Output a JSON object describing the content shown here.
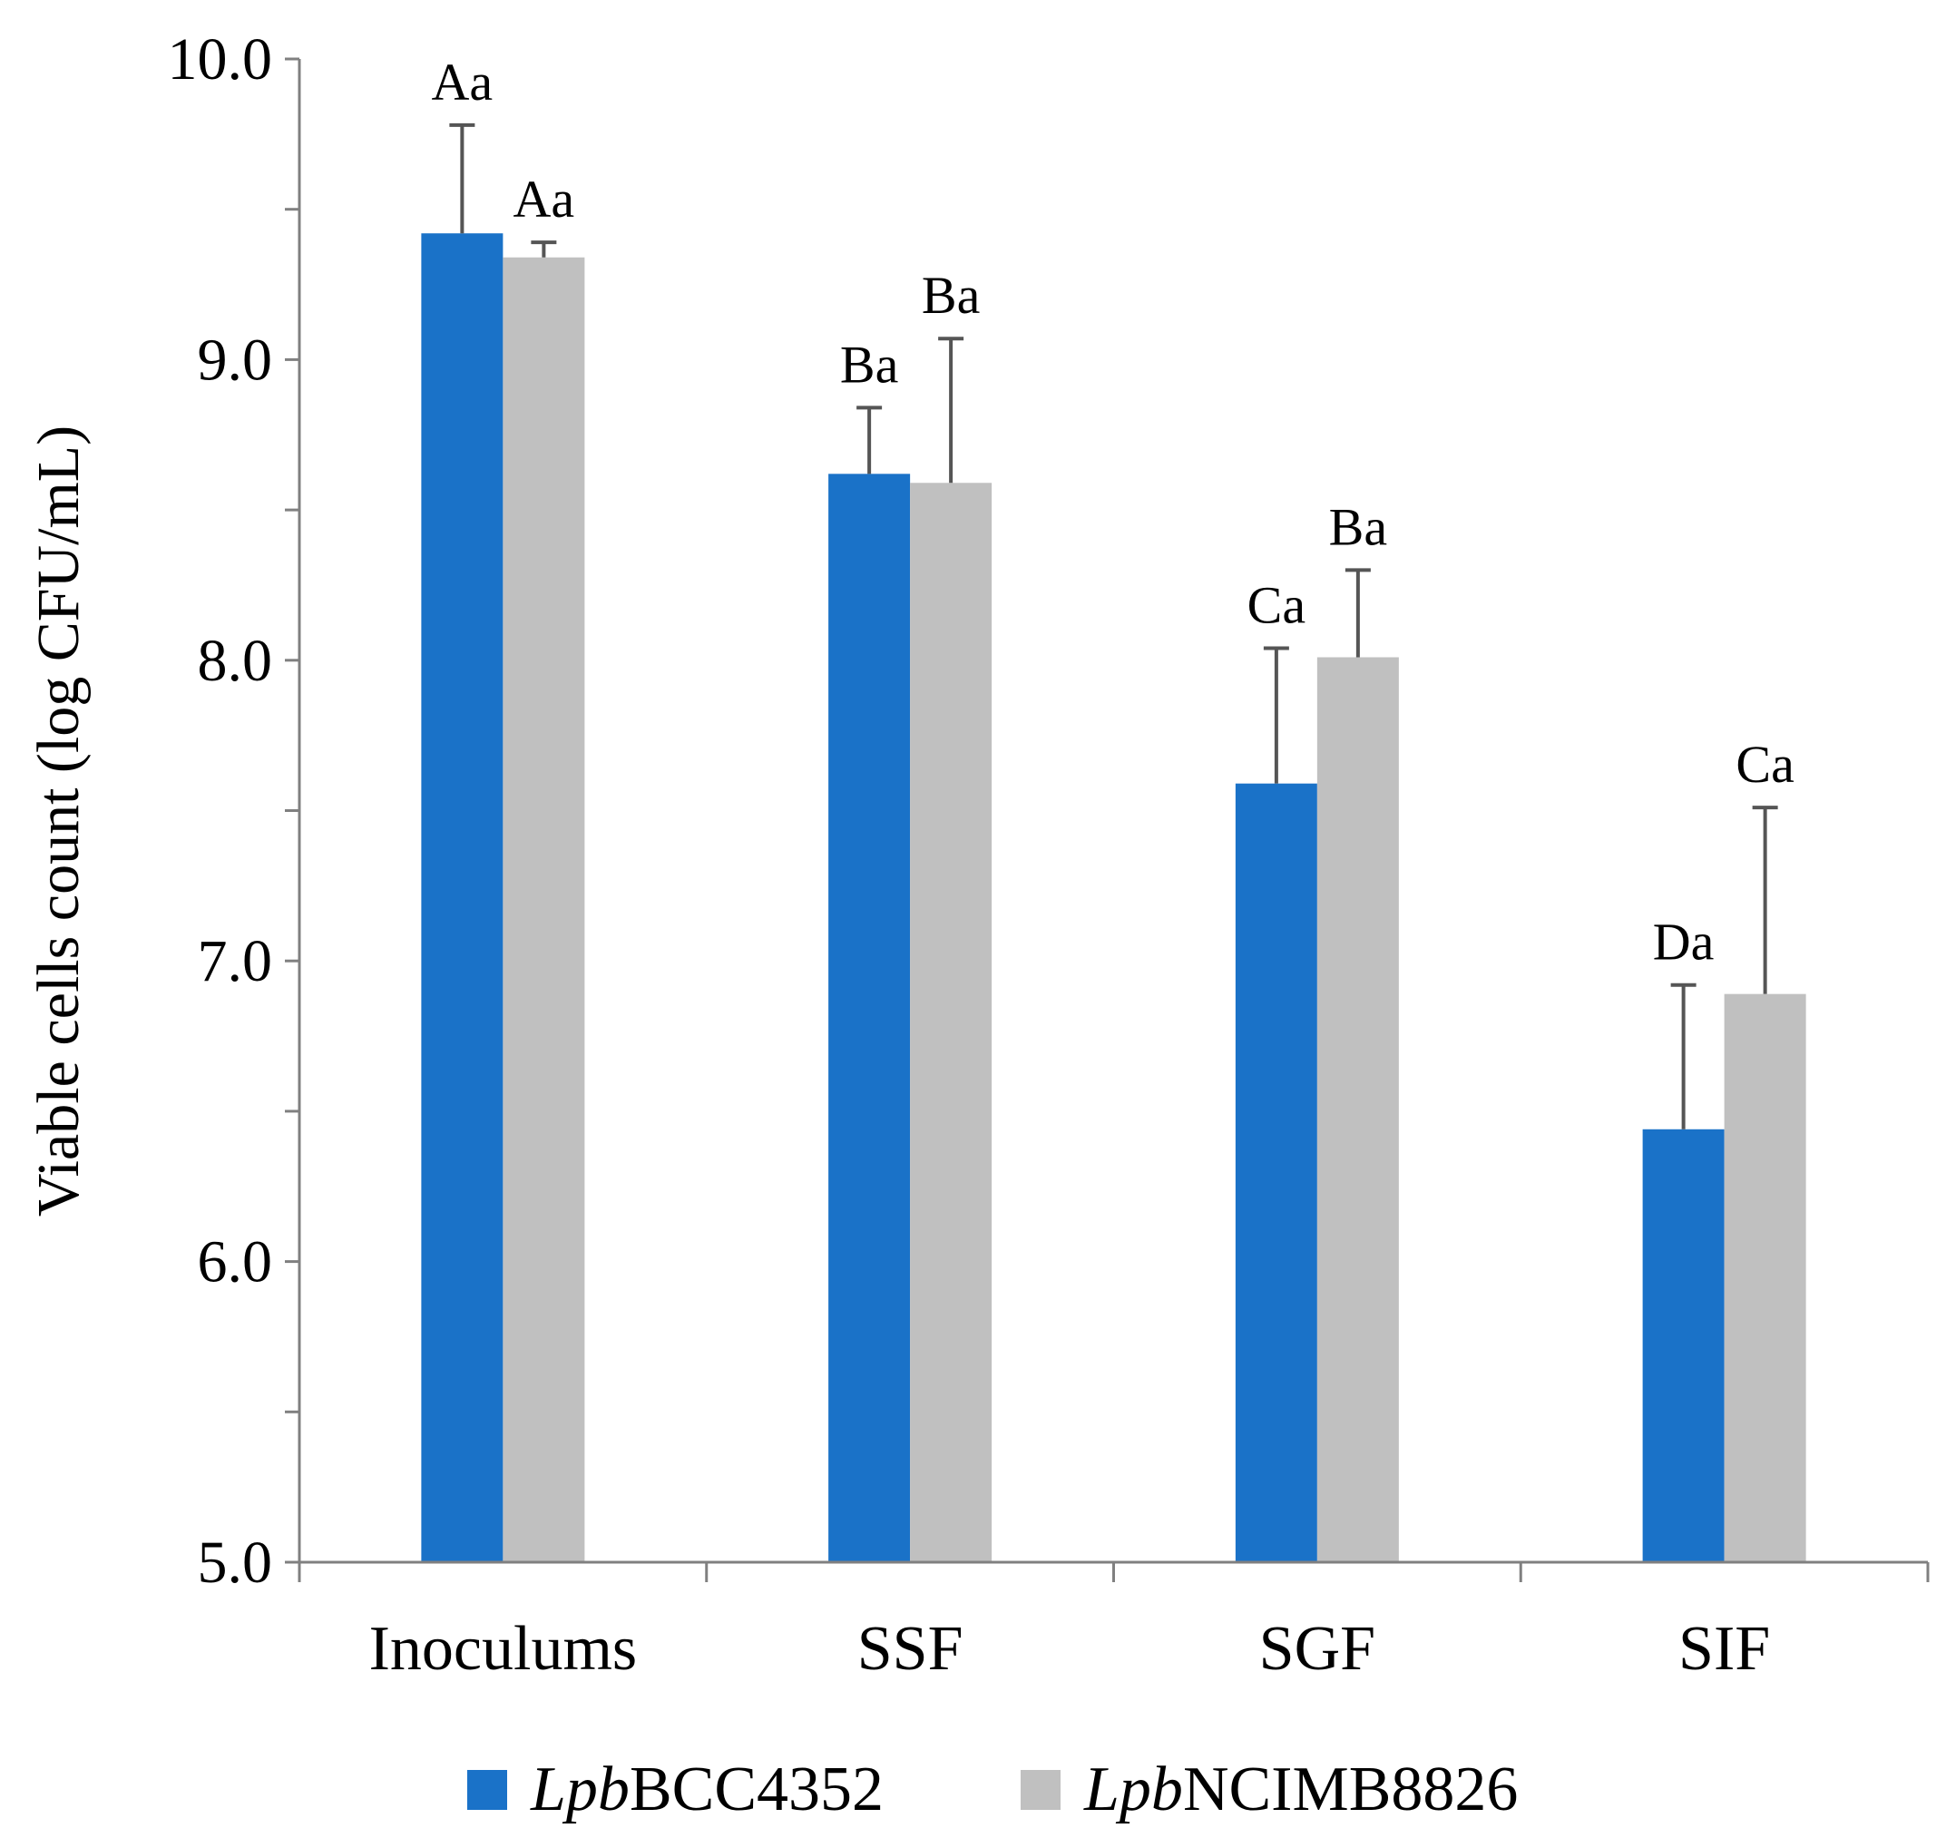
{
  "chart_data": {
    "type": "bar",
    "title": "",
    "xlabel": "",
    "ylabel": "Viable cells count (log CFU/mL)",
    "ylim": [
      5.0,
      10.0
    ],
    "yticks": [
      "5.0",
      "6.0",
      "7.0",
      "8.0",
      "9.0",
      "10.0"
    ],
    "minor_tick_step": 0.5,
    "grid": false,
    "legend_position": "bottom",
    "categories": [
      "Inoculums",
      "SSF",
      "SGF",
      "SIF"
    ],
    "series": [
      {
        "name": "LpbBCC4352",
        "name_prefix_italic": "Lpb",
        "name_suffix": "BCC4352",
        "color": "#1a72c8",
        "values": [
          9.42,
          8.62,
          7.59,
          6.44
        ],
        "errors": [
          0.36,
          0.22,
          0.45,
          0.48
        ],
        "labels": [
          "Aa",
          "Ba",
          "Ca",
          "Da"
        ]
      },
      {
        "name": "LpbNCIMB8826",
        "name_prefix_italic": "Lpb",
        "name_suffix": "NCIMB8826",
        "color": "#c0c0c0",
        "values": [
          9.34,
          8.59,
          8.01,
          6.89
        ],
        "errors": [
          0.05,
          0.48,
          0.29,
          0.62
        ],
        "labels": [
          "Aa",
          "Ba",
          "Ba",
          "Ca"
        ]
      }
    ],
    "axis_color": "#808080",
    "error_bar_color": "#555555"
  }
}
